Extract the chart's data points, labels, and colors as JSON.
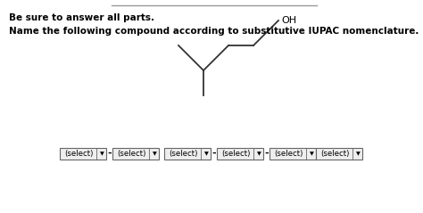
{
  "title_line1": "Be sure to answer all parts.",
  "title_line2": "Name the following compound according to substitutive IUPAC nomenclature.",
  "background_color": "#ffffff",
  "top_line_color": "#999999",
  "text_color": "#000000",
  "molecule_color": "#333333",
  "oh_label": "OH",
  "dropdowns": [
    {
      "label": "(select)",
      "sep": "-"
    },
    {
      "label": "(select)",
      "sep": " "
    },
    {
      "label": "(select)",
      "sep": "-"
    },
    {
      "label": "(select)",
      "sep": "-"
    },
    {
      "label": "(select)",
      "sep": ""
    },
    {
      "label": "(select)",
      "sep": ""
    }
  ]
}
